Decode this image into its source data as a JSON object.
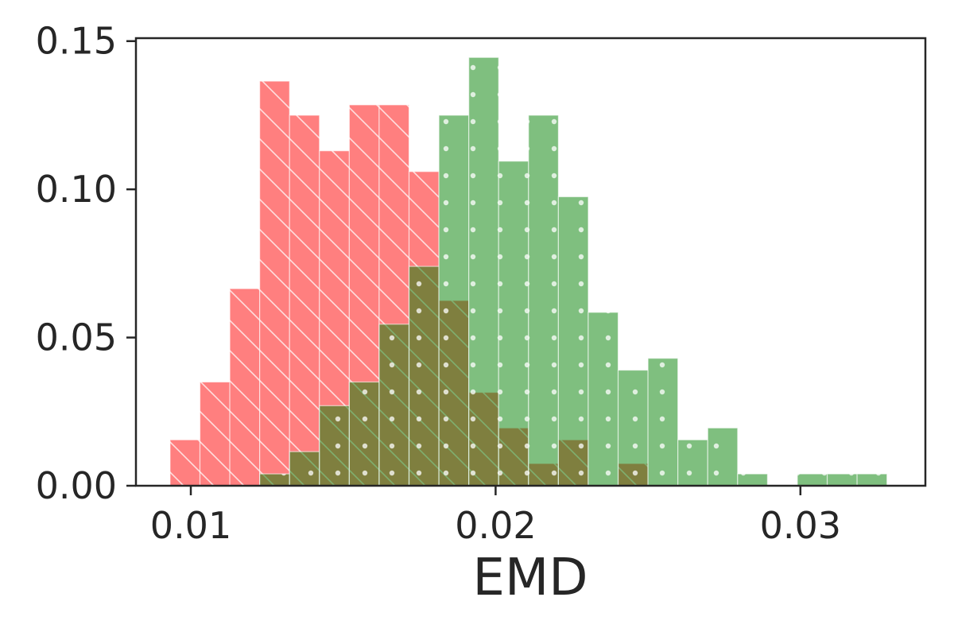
{
  "chart_data": {
    "type": "bar",
    "title": "",
    "xlabel": "EMD",
    "ylabel": "",
    "xlim": [
      0.0082,
      0.0341
    ],
    "ylim": [
      0.0,
      0.151
    ],
    "grid": false,
    "x_ticks": [
      0.01,
      0.02,
      0.03
    ],
    "x_tick_labels": [
      "0.01",
      "0.02",
      "0.03"
    ],
    "y_ticks": [
      0.0,
      0.05,
      0.1,
      0.15
    ],
    "y_tick_labels": [
      "0.00",
      "0.05",
      "0.10",
      "0.15"
    ],
    "series": [
      {
        "color": "#ff0000",
        "opacity": 0.5,
        "hatch": "diagonal",
        "bin_width": 0.00098,
        "bins": [
          {
            "x0": 0.00932,
            "height": 0.0155
          },
          {
            "x0": 0.0103,
            "height": 0.035
          },
          {
            "x0": 0.01128,
            "height": 0.0665
          },
          {
            "x0": 0.01226,
            "height": 0.1365
          },
          {
            "x0": 0.01324,
            "height": 0.125
          },
          {
            "x0": 0.01422,
            "height": 0.113
          },
          {
            "x0": 0.0152,
            "height": 0.1285
          },
          {
            "x0": 0.01618,
            "height": 0.1285
          },
          {
            "x0": 0.01716,
            "height": 0.106
          },
          {
            "x0": 0.01814,
            "height": 0.0625
          },
          {
            "x0": 0.01912,
            "height": 0.0315
          },
          {
            "x0": 0.0201,
            "height": 0.0195
          },
          {
            "x0": 0.02108,
            "height": 0.0075
          },
          {
            "x0": 0.02206,
            "height": 0.0155
          },
          {
            "x0": 0.02304,
            "height": 0.0
          },
          {
            "x0": 0.02402,
            "height": 0.0075
          }
        ]
      },
      {
        "color": "#008000",
        "opacity": 0.5,
        "hatch": "dots",
        "bin_width": 0.00098,
        "bins": [
          {
            "x0": 0.01226,
            "height": 0.004
          },
          {
            "x0": 0.01324,
            "height": 0.0115
          },
          {
            "x0": 0.01422,
            "height": 0.027
          },
          {
            "x0": 0.0152,
            "height": 0.035
          },
          {
            "x0": 0.01618,
            "height": 0.0545
          },
          {
            "x0": 0.01716,
            "height": 0.074
          },
          {
            "x0": 0.01814,
            "height": 0.125
          },
          {
            "x0": 0.01912,
            "height": 0.1445
          },
          {
            "x0": 0.0201,
            "height": 0.1095
          },
          {
            "x0": 0.02108,
            "height": 0.125
          },
          {
            "x0": 0.02206,
            "height": 0.0975
          },
          {
            "x0": 0.02304,
            "height": 0.0585
          },
          {
            "x0": 0.02402,
            "height": 0.039
          },
          {
            "x0": 0.025,
            "height": 0.043
          },
          {
            "x0": 0.02598,
            "height": 0.0155
          },
          {
            "x0": 0.02696,
            "height": 0.0195
          },
          {
            "x0": 0.02794,
            "height": 0.004
          },
          {
            "x0": 0.02892,
            "height": 0.0
          },
          {
            "x0": 0.0299,
            "height": 0.004
          },
          {
            "x0": 0.03088,
            "height": 0.004
          },
          {
            "x0": 0.03186,
            "height": 0.004
          }
        ]
      }
    ]
  }
}
